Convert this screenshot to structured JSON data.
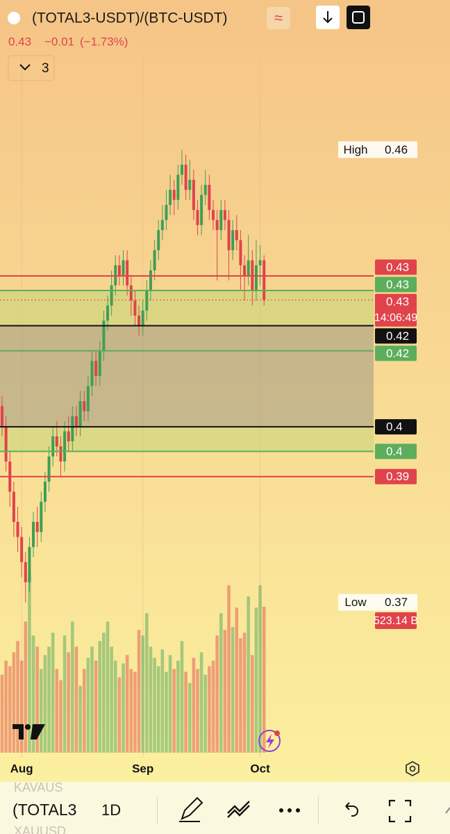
{
  "header": {
    "symbol": "(TOTAL3-USDT)/(BTC-USDT)",
    "last": "0.43",
    "change": "−0.01",
    "change_percent": "(−1.73%)",
    "indicator_count": "3"
  },
  "chart_data": {
    "type": "candlestick",
    "categories": [
      null,
      null,
      null,
      null,
      null,
      "Aug",
      null,
      null,
      null,
      null,
      null,
      null,
      null,
      null,
      null,
      null,
      null,
      null,
      null,
      null,
      null,
      null,
      null,
      null,
      null,
      null,
      null,
      null,
      null,
      null,
      null,
      null,
      null,
      null,
      null,
      null,
      "Sep",
      null,
      null,
      null,
      null,
      null,
      null,
      null,
      null,
      null,
      null,
      null,
      null,
      null,
      null,
      null,
      null,
      null,
      null,
      null,
      null,
      null,
      null,
      null,
      null,
      null,
      null,
      null,
      null,
      null,
      "Oct",
      null
    ],
    "open": [
      0.409,
      0.405,
      0.398,
      0.392,
      0.386,
      0.383,
      0.378,
      0.374,
      0.381,
      0.386,
      0.384,
      0.39,
      0.394,
      0.399,
      0.403,
      0.401,
      0.398,
      0.404,
      0.402,
      0.407,
      0.405,
      0.41,
      0.408,
      0.413,
      0.418,
      0.415,
      0.42,
      0.426,
      0.429,
      0.433,
      0.437,
      0.435,
      0.438,
      0.433,
      0.43,
      0.427,
      0.425,
      0.428,
      0.432,
      0.436,
      0.44,
      0.444,
      0.446,
      0.449,
      0.452,
      0.45,
      0.455,
      0.457,
      0.452,
      0.454,
      0.448,
      0.445,
      0.451,
      0.453,
      0.448,
      0.446,
      0.444,
      0.448,
      0.446,
      0.44,
      0.444,
      0.442,
      0.437,
      0.435,
      0.438,
      0.432,
      0.437,
      0.438
    ],
    "high": [
      0.411,
      0.407,
      0.4,
      0.394,
      0.389,
      0.385,
      0.38,
      0.383,
      0.388,
      0.389,
      0.392,
      0.396,
      0.401,
      0.405,
      0.406,
      0.403,
      0.406,
      0.407,
      0.409,
      0.409,
      0.412,
      0.412,
      0.415,
      0.42,
      0.42,
      0.422,
      0.428,
      0.431,
      0.436,
      0.439,
      0.439,
      0.44,
      0.44,
      0.435,
      0.432,
      0.429,
      0.43,
      0.434,
      0.438,
      0.442,
      0.446,
      0.449,
      0.452,
      0.455,
      0.454,
      0.457,
      0.46,
      0.459,
      0.458,
      0.456,
      0.45,
      0.453,
      0.456,
      0.455,
      0.45,
      0.448,
      0.45,
      0.45,
      0.448,
      0.446,
      0.447,
      0.444,
      0.439,
      0.443,
      0.44,
      0.442,
      0.441,
      0.439
    ],
    "low": [
      0.403,
      0.396,
      0.389,
      0.383,
      0.38,
      0.375,
      0.37,
      0.372,
      0.379,
      0.381,
      0.382,
      0.388,
      0.392,
      0.397,
      0.399,
      0.395,
      0.396,
      0.4,
      0.4,
      0.403,
      0.403,
      0.406,
      0.406,
      0.411,
      0.413,
      0.413,
      0.418,
      0.424,
      0.427,
      0.431,
      0.433,
      0.433,
      0.431,
      0.427,
      0.425,
      0.423,
      0.423,
      0.426,
      0.43,
      0.434,
      0.438,
      0.442,
      0.444,
      0.447,
      0.447,
      0.448,
      0.453,
      0.45,
      0.45,
      0.446,
      0.443,
      0.443,
      0.449,
      0.446,
      0.444,
      0.434,
      0.442,
      0.444,
      0.434,
      0.438,
      0.44,
      0.432,
      0.43,
      0.433,
      0.429,
      0.43,
      0.433,
      0.429
    ],
    "close": [
      0.405,
      0.398,
      0.392,
      0.386,
      0.383,
      0.378,
      0.374,
      0.381,
      0.386,
      0.384,
      0.39,
      0.394,
      0.399,
      0.403,
      0.401,
      0.398,
      0.404,
      0.402,
      0.407,
      0.405,
      0.41,
      0.408,
      0.413,
      0.418,
      0.415,
      0.42,
      0.426,
      0.429,
      0.433,
      0.437,
      0.435,
      0.438,
      0.433,
      0.43,
      0.427,
      0.425,
      0.428,
      0.432,
      0.436,
      0.44,
      0.444,
      0.446,
      0.449,
      0.452,
      0.45,
      0.455,
      0.457,
      0.452,
      0.454,
      0.448,
      0.445,
      0.451,
      0.453,
      0.448,
      0.446,
      0.444,
      0.448,
      0.446,
      0.44,
      0.444,
      0.442,
      0.437,
      0.435,
      0.438,
      0.432,
      0.437,
      0.438,
      0.4301
    ],
    "up_color": "#3f9f56",
    "down_color": "#e0434a",
    "ylim": [
      0.3654,
      0.4704
    ],
    "high_marker": {
      "label": "High",
      "value": 0.46
    },
    "low_marker": {
      "label": "Low",
      "value": 0.37
    },
    "current": {
      "value": 0.4301,
      "label": "0.43",
      "countdown": "14:06:49"
    },
    "levels": [
      {
        "value": 0.4349,
        "label": "0.43",
        "color": "#e0434a"
      },
      {
        "value": 0.432,
        "label": "0.43",
        "color": "#5cae5c"
      },
      {
        "value": 0.425,
        "label": "0.42",
        "color": "#111111"
      },
      {
        "value": 0.42,
        "label": "0.42",
        "color": "#5cae5c"
      },
      {
        "value": 0.4049,
        "label": "0.4",
        "color": "#111111"
      },
      {
        "value": 0.4,
        "label": "0.4",
        "color": "#5cae5c"
      },
      {
        "value": 0.395,
        "label": "0.39",
        "color": "#e0434a"
      }
    ],
    "volume": {
      "values": [
        280,
        330,
        310,
        360,
        400,
        330,
        470,
        640,
        420,
        380,
        300,
        350,
        380,
        430,
        300,
        260,
        420,
        360,
        470,
        380,
        240,
        300,
        340,
        380,
        330,
        400,
        430,
        470,
        380,
        330,
        270,
        320,
        350,
        300,
        290,
        440,
        420,
        500,
        380,
        340,
        310,
        370,
        290,
        350,
        300,
        330,
        400,
        290,
        250,
        340,
        300,
        360,
        280,
        310,
        330,
        420,
        500,
        440,
        600,
        450,
        520,
        410,
        430,
        560,
        350,
        520,
        600,
        523.14
      ],
      "ylim": [
        0,
        700
      ],
      "last": {
        "value": 523.14,
        "label": "523.14 B"
      }
    }
  },
  "toolbar": {
    "symbol": "(TOTAL3",
    "interval": "1D",
    "watch_above": "KAVAUS",
    "watch_below": "XAUUSD"
  }
}
